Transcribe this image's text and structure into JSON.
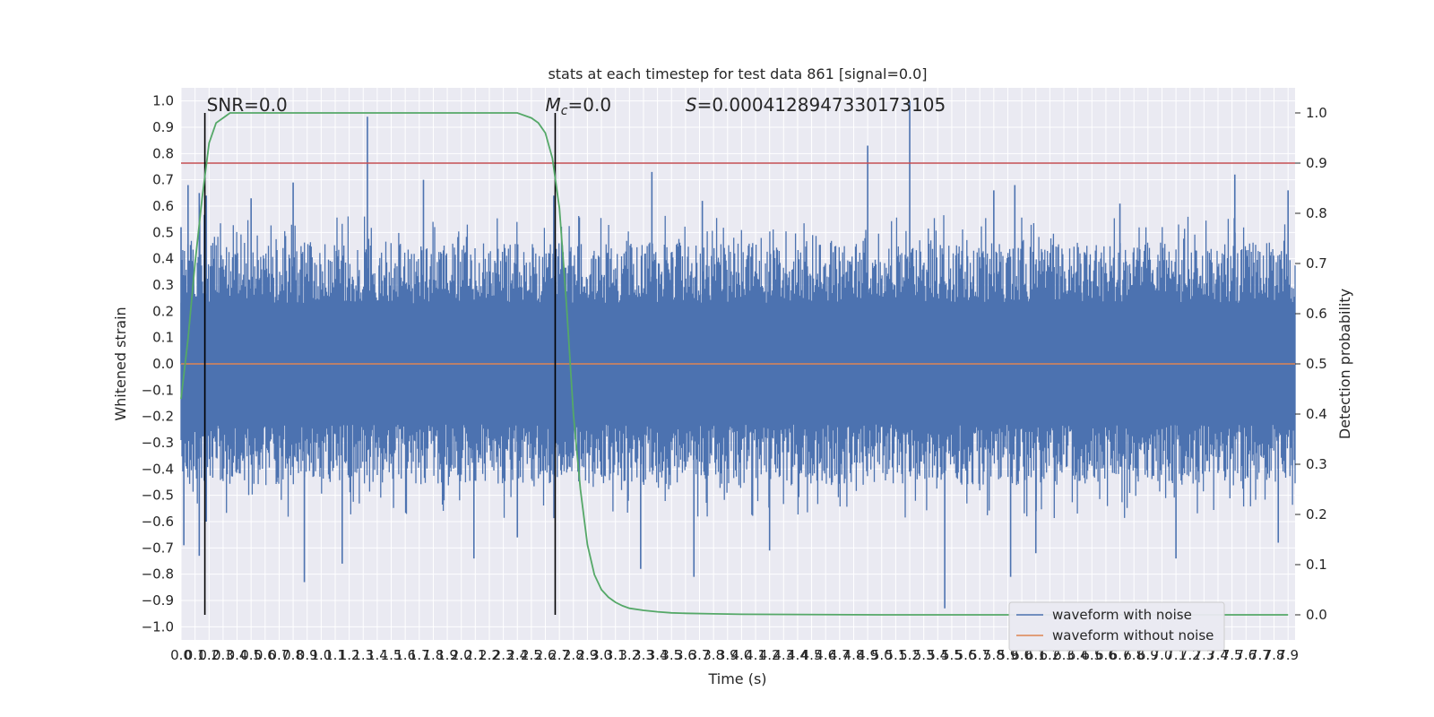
{
  "chart_data": {
    "type": "line",
    "title": "stats at each timestep for test data 861 [signal=0.0]",
    "xlabel": "Time (s)",
    "ylabel": "Whitened strain",
    "y2label": "Detection probability",
    "xlim": [
      0.0,
      7.95
    ],
    "ylim": [
      -1.05,
      1.05
    ],
    "y2lim": [
      -0.05,
      1.05
    ],
    "x_ticks": [
      0.0,
      0.1,
      0.2,
      0.3,
      0.4,
      0.5,
      0.6,
      0.7,
      0.8,
      0.9,
      1.0,
      1.1,
      1.2,
      1.3,
      1.4,
      1.5,
      1.6,
      1.7,
      1.8,
      1.9,
      2.0,
      2.1,
      2.2,
      2.3,
      2.4,
      2.5,
      2.6,
      2.7,
      2.8,
      2.9,
      3.0,
      3.1,
      3.2,
      3.3,
      3.4,
      3.5,
      3.6,
      3.7,
      3.8,
      3.9,
      4.0,
      4.1,
      4.2,
      4.3,
      4.4,
      4.5,
      4.6,
      4.7,
      4.8,
      4.9,
      5.0,
      5.1,
      5.2,
      5.3,
      5.4,
      5.5,
      5.6,
      5.7,
      5.8,
      5.9,
      6.0,
      6.1,
      6.2,
      6.3,
      6.4,
      6.5,
      6.6,
      6.7,
      6.8,
      6.9,
      7.0,
      7.1,
      7.2,
      7.3,
      7.4,
      7.5,
      7.6,
      7.7,
      7.8,
      7.9
    ],
    "x_tick_labels": [
      "0.0",
      "0.1",
      "0.2",
      "0.3",
      "0.4",
      "0.5",
      "0.6",
      "0.7",
      "0.8",
      "0.9",
      "1.0",
      "1.1",
      "1.2",
      "1.3",
      "1.4",
      "1.5",
      "1.6",
      "1.7",
      "1.8",
      "1.9",
      "2.0",
      "2.1",
      "2.2",
      "2.3",
      "2.4",
      "2.5",
      "2.6",
      "2.7",
      "2.8",
      "2.9",
      "3.0",
      "3.1",
      "3.2",
      "3.3",
      "3.4",
      "3.5",
      "3.6",
      "3.7",
      "3.8",
      "3.9",
      "4.0",
      "4.1",
      "4.2",
      "4.3",
      "4.4",
      "4.5",
      "4.6",
      "4.7",
      "4.8",
      "4.9",
      "5.0",
      "5.1",
      "5.2",
      "5.3",
      "5.4",
      "5.5",
      "5.6",
      "5.7",
      "5.8",
      "5.9",
      "6.0",
      "6.1",
      "6.2",
      "6.3",
      "6.4",
      "6.5",
      "6.6",
      "6.7",
      "6.8",
      "6.9",
      "7.0",
      "7.1",
      "7.2",
      "7.3",
      "7.4",
      "7.5",
      "7.6",
      "7.7",
      "7.8",
      "7.9"
    ],
    "y_ticks": [
      -1.0,
      -0.9,
      -0.8,
      -0.7,
      -0.6,
      -0.5,
      -0.4,
      -0.3,
      -0.2,
      -0.1,
      0.0,
      0.1,
      0.2,
      0.3,
      0.4,
      0.5,
      0.6,
      0.7,
      0.8,
      0.9,
      1.0
    ],
    "y_tick_labels": [
      "−1.0",
      "−0.9",
      "−0.8",
      "−0.7",
      "−0.6",
      "−0.5",
      "−0.4",
      "−0.3",
      "−0.2",
      "−0.1",
      "0.0",
      "0.1",
      "0.2",
      "0.3",
      "0.4",
      "0.5",
      "0.6",
      "0.7",
      "0.8",
      "0.9",
      "1.0"
    ],
    "y2_ticks": [
      0.0,
      0.1,
      0.2,
      0.3,
      0.4,
      0.5,
      0.6,
      0.7,
      0.8,
      0.9,
      1.0
    ],
    "y2_tick_labels": [
      "0.0",
      "0.1",
      "0.2",
      "0.3",
      "0.4",
      "0.5",
      "0.6",
      "0.7",
      "0.8",
      "0.9",
      "1.0"
    ],
    "grid": true,
    "legend_position": "lower-right",
    "series": [
      {
        "name": "waveform with noise",
        "color": "#4c72b0",
        "axis": "left",
        "style": "noise envelope",
        "baseline_amplitude": 0.42,
        "x_range": [
          0.0,
          7.95
        ],
        "peaks": [
          {
            "x": 0.0,
            "y": 0.52
          },
          {
            "x": 0.05,
            "y": 0.68
          },
          {
            "x": 0.13,
            "y": 0.65
          },
          {
            "x": 0.18,
            "y": 0.64
          },
          {
            "x": 0.5,
            "y": 0.63
          },
          {
            "x": 0.8,
            "y": 0.69
          },
          {
            "x": 1.33,
            "y": 0.94
          },
          {
            "x": 1.73,
            "y": 0.7
          },
          {
            "x": 2.66,
            "y": 0.64
          },
          {
            "x": 3.36,
            "y": 0.73
          },
          {
            "x": 3.72,
            "y": 0.62
          },
          {
            "x": 4.9,
            "y": 0.83
          },
          {
            "x": 5.2,
            "y": 1.0
          },
          {
            "x": 5.8,
            "y": 0.66
          },
          {
            "x": 5.95,
            "y": 0.68
          },
          {
            "x": 6.7,
            "y": 0.61
          },
          {
            "x": 7.52,
            "y": 0.72
          },
          {
            "x": 7.9,
            "y": 0.66
          }
        ],
        "troughs": [
          {
            "x": 0.02,
            "y": -0.69
          },
          {
            "x": 0.13,
            "y": -0.73
          },
          {
            "x": 0.18,
            "y": -0.6
          },
          {
            "x": 0.88,
            "y": -0.83
          },
          {
            "x": 1.15,
            "y": -0.76
          },
          {
            "x": 2.09,
            "y": -0.74
          },
          {
            "x": 2.4,
            "y": -0.66
          },
          {
            "x": 3.28,
            "y": -0.78
          },
          {
            "x": 3.66,
            "y": -0.81
          },
          {
            "x": 4.2,
            "y": -0.71
          },
          {
            "x": 5.45,
            "y": -0.93
          },
          {
            "x": 5.92,
            "y": -0.81
          },
          {
            "x": 6.1,
            "y": -0.72
          },
          {
            "x": 7.1,
            "y": -0.74
          },
          {
            "x": 7.83,
            "y": -0.68
          }
        ]
      },
      {
        "name": "waveform without noise",
        "color": "#dd8452",
        "axis": "left",
        "x": [
          0.0,
          7.95
        ],
        "y": [
          0.0,
          0.0
        ]
      },
      {
        "name": "",
        "color": "#55a868",
        "axis": "right",
        "x": [
          0.0,
          0.05,
          0.1,
          0.15,
          0.2,
          0.25,
          0.3,
          0.35,
          0.4,
          0.5,
          1.0,
          2.0,
          2.4,
          2.5,
          2.55,
          2.6,
          2.65,
          2.7,
          2.75,
          2.8,
          2.85,
          2.9,
          2.95,
          3.0,
          3.05,
          3.1,
          3.15,
          3.2,
          3.3,
          3.4,
          3.5,
          3.6,
          3.8,
          4.0,
          5.0,
          7.9
        ],
        "y": [
          0.43,
          0.55,
          0.7,
          0.83,
          0.94,
          0.98,
          0.99,
          1.0,
          1.0,
          1.0,
          1.0,
          1.0,
          1.0,
          0.99,
          0.98,
          0.96,
          0.91,
          0.81,
          0.62,
          0.4,
          0.25,
          0.14,
          0.08,
          0.05,
          0.035,
          0.025,
          0.018,
          0.013,
          0.009,
          0.006,
          0.004,
          0.003,
          0.002,
          0.001,
          0.0,
          0.0
        ]
      }
    ],
    "hlines": [
      {
        "axis": "right",
        "y": 0.9,
        "color": "#c44e52"
      }
    ],
    "vlines": [
      {
        "x": 0.17,
        "y_from": 0.0,
        "y_to": 1.0,
        "axis": "right",
        "color": "#000000"
      },
      {
        "x": 2.67,
        "y_from": 0.0,
        "y_to": 1.0,
        "axis": "right",
        "color": "#000000"
      }
    ],
    "annotations": [
      {
        "text": "SNR=0.0",
        "x": 0.17
      },
      {
        "text": "Mc=0.0",
        "x": 2.6
      },
      {
        "text": "S=0.0004128947330173105",
        "x": 3.6
      }
    ]
  }
}
